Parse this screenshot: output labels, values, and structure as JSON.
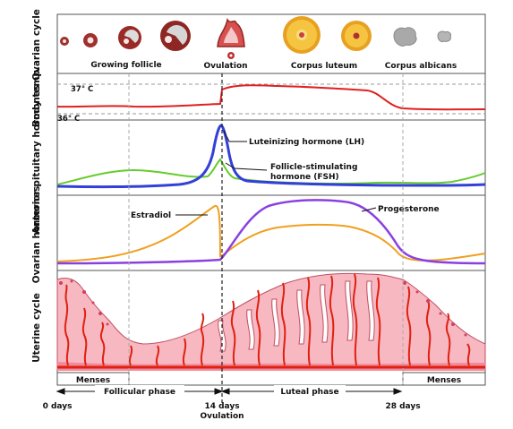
{
  "rows": {
    "ovarian_cycle": "Ovarian cycle",
    "body_temp": "Body temp.",
    "anterior_pituitary": "Anterior pituitary hormones",
    "ovarian_hormones": "Ovarian hormones",
    "uterine_cycle": "Uterine cycle"
  },
  "stages": {
    "growing_follicle": "Growing follicle",
    "ovulation": "Ovulation",
    "corpus_luteum": "Corpus luteum",
    "corpus_albicans": "Corpus albicans"
  },
  "temperature": {
    "high": "37° C",
    "low": "36° C"
  },
  "hormones": {
    "lh": "Luteinizing hormone (LH)",
    "fsh_line1": "Follicle-stimulating",
    "fsh_line2": "hormone (FSH)",
    "estradiol": "Estradiol",
    "progesterone": "Progesterone"
  },
  "phases": {
    "menses_start": "Menses",
    "menses_end": "Menses",
    "follicular": "Follicular phase",
    "luteal": "Luteal phase"
  },
  "days": {
    "start": "0 days",
    "mid": "14 days",
    "mid_sub": "Ovulation",
    "end": "28 days"
  },
  "colors": {
    "lh": "#3340d8",
    "fsh": "#66cc2e",
    "estradiol": "#f0a020",
    "progesterone": "#8a40e0",
    "temperature": "#e02020",
    "uterine_fill": "#f7b8c2",
    "uterine_vessel": "#e02010",
    "follicle": "#a0302c",
    "corpus_luteum": "#f5c542",
    "corpus_albicans": "#a9a9a9"
  }
}
